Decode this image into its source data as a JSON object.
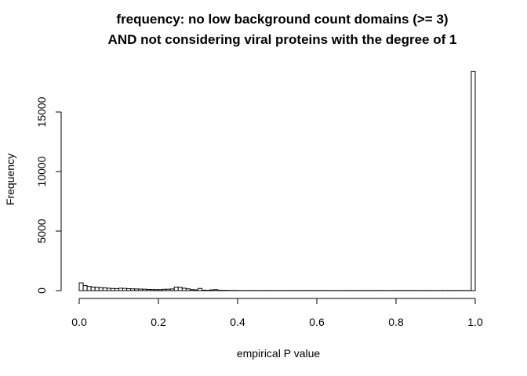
{
  "chart_data": {
    "type": "bar",
    "title": [
      "frequency: no low background count domains (>= 3)",
      "AND not considering viral proteins with the degree of 1"
    ],
    "xlabel": "empirical P value",
    "ylabel": "Frequency",
    "xlim": [
      0,
      1
    ],
    "ylim": [
      0,
      18400
    ],
    "bin_width": 0.01,
    "x_ticks": [
      {
        "value": 0.0,
        "label": "0.0"
      },
      {
        "value": 0.2,
        "label": "0.2"
      },
      {
        "value": 0.4,
        "label": "0.4"
      },
      {
        "value": 0.6,
        "label": "0.6"
      },
      {
        "value": 0.8,
        "label": "0.8"
      },
      {
        "value": 1.0,
        "label": "1.0"
      }
    ],
    "y_ticks": [
      {
        "value": 0,
        "label": "0"
      },
      {
        "value": 5000,
        "label": "5000"
      },
      {
        "value": 10000,
        "label": "10000"
      },
      {
        "value": 15000,
        "label": "15000"
      }
    ],
    "bins_left": [
      0.0,
      0.01,
      0.02,
      0.03,
      0.04,
      0.05,
      0.06,
      0.07,
      0.08,
      0.09,
      0.1,
      0.11,
      0.12,
      0.13,
      0.14,
      0.15,
      0.16,
      0.17,
      0.18,
      0.19,
      0.2,
      0.21,
      0.22,
      0.23,
      0.24,
      0.25,
      0.26,
      0.27,
      0.28,
      0.29,
      0.3,
      0.31,
      0.32,
      0.33,
      0.34,
      0.35,
      0.36,
      0.37,
      0.38,
      0.39,
      0.4,
      0.41,
      0.42,
      0.43,
      0.44,
      0.45,
      0.46,
      0.47,
      0.48,
      0.49,
      0.5,
      0.51,
      0.52,
      0.53,
      0.54,
      0.55,
      0.56,
      0.57,
      0.58,
      0.59,
      0.6,
      0.61,
      0.62,
      0.63,
      0.64,
      0.65,
      0.66,
      0.67,
      0.68,
      0.69,
      0.7,
      0.71,
      0.72,
      0.73,
      0.74,
      0.75,
      0.76,
      0.77,
      0.78,
      0.79,
      0.8,
      0.81,
      0.82,
      0.83,
      0.84,
      0.85,
      0.86,
      0.87,
      0.88,
      0.89,
      0.9,
      0.91,
      0.92,
      0.93,
      0.94,
      0.95,
      0.96,
      0.97,
      0.98,
      0.99
    ],
    "values": [
      650,
      420,
      350,
      300,
      280,
      250,
      230,
      200,
      180,
      170,
      200,
      190,
      160,
      150,
      140,
      130,
      120,
      100,
      90,
      80,
      80,
      110,
      120,
      140,
      300,
      280,
      200,
      150,
      80,
      60,
      180,
      40,
      30,
      60,
      80,
      30,
      25,
      20,
      15,
      15,
      10,
      10,
      10,
      10,
      10,
      10,
      10,
      10,
      10,
      10,
      10,
      10,
      10,
      10,
      10,
      10,
      10,
      10,
      10,
      10,
      10,
      10,
      10,
      10,
      10,
      10,
      10,
      10,
      10,
      10,
      10,
      10,
      10,
      10,
      10,
      10,
      10,
      10,
      10,
      10,
      10,
      10,
      10,
      10,
      10,
      10,
      10,
      10,
      10,
      10,
      10,
      10,
      10,
      10,
      10,
      10,
      10,
      10,
      10,
      18400
    ]
  }
}
